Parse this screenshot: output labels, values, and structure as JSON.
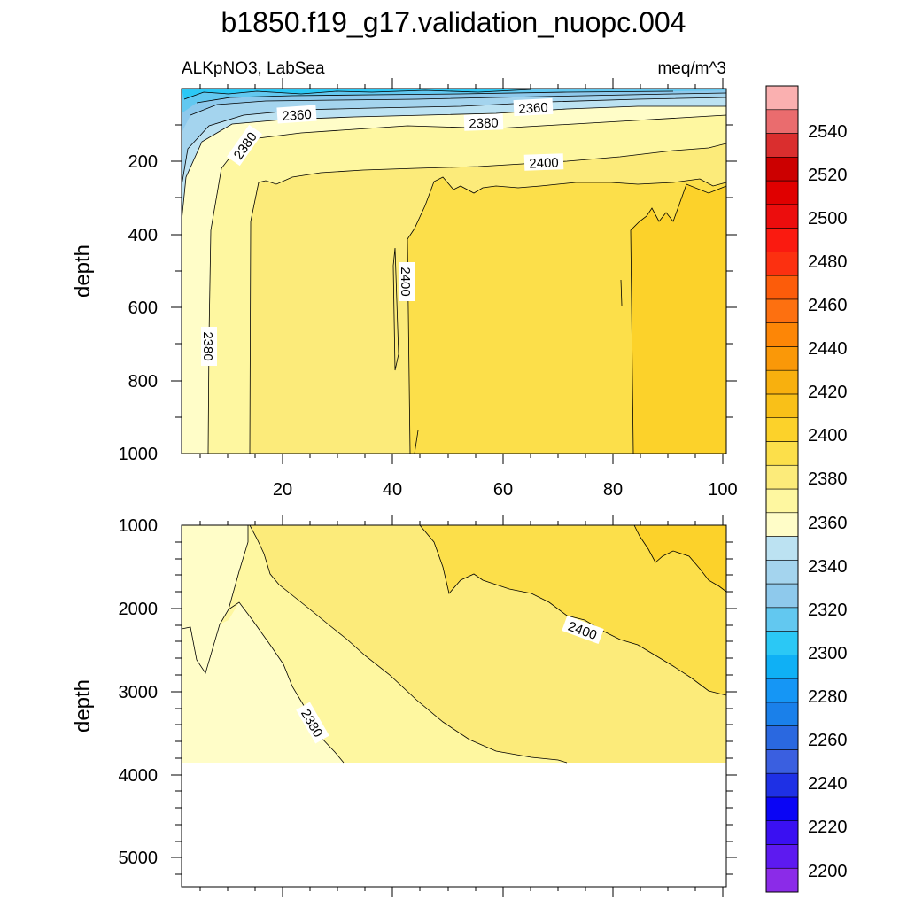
{
  "chart_data": {
    "type": "contour",
    "title": "b1850.f19_g17.validation_nuopc.004",
    "left_label": "ALKpNO3, LabSea",
    "right_label": "meq/m^3",
    "ylabel": "depth",
    "x_ticks": [
      "20",
      "40",
      "60",
      "80",
      "100"
    ],
    "xlim": [
      1,
      101
    ],
    "upper_panel": {
      "ylim": [
        0,
        1000
      ],
      "y_ticks": [
        "200",
        "400",
        "600",
        "800",
        "1000"
      ],
      "contour_labels": [
        "2360",
        "2380",
        "2360",
        "2380",
        "2400",
        "2400",
        "2380"
      ]
    },
    "lower_panel": {
      "ylim": [
        1000,
        5400
      ],
      "y_ticks": [
        "1000",
        "2000",
        "3000",
        "4000",
        "5000"
      ],
      "data_bottom_depth": 3870,
      "contour_labels": [
        "2400",
        "2380"
      ]
    },
    "colorbar": {
      "min": 2190,
      "step": 10,
      "labels": [
        "2540",
        "2520",
        "2500",
        "2480",
        "2460",
        "2440",
        "2420",
        "2400",
        "2380",
        "2360",
        "2340",
        "2320",
        "2300",
        "2280",
        "2260",
        "2240",
        "2220",
        "2200"
      ],
      "colors": [
        "#8B2BE8",
        "#5D1AF0",
        "#3A10F2",
        "#0A05F5",
        "#1E30E5",
        "#3A5FE0",
        "#2A68E0",
        "#1A80EA",
        "#1596F5",
        "#0FB0F5",
        "#2BC8F5",
        "#62C8F0",
        "#8EC9EC",
        "#A4D4EE",
        "#BCE2F2",
        "#FFFDC8",
        "#FEF7A0",
        "#FCEB7A",
        "#FCDF4A",
        "#FCD22A",
        "#F9C018",
        "#F8B00E",
        "#FA9808",
        "#FD8606",
        "#FD7010",
        "#FC5C0A",
        "#FC3010",
        "#FA1A10",
        "#EC0D0D",
        "#E00000",
        "#CC0000",
        "#DA2E2E",
        "#EA6C6E",
        "#FAB0B0"
      ]
    }
  }
}
